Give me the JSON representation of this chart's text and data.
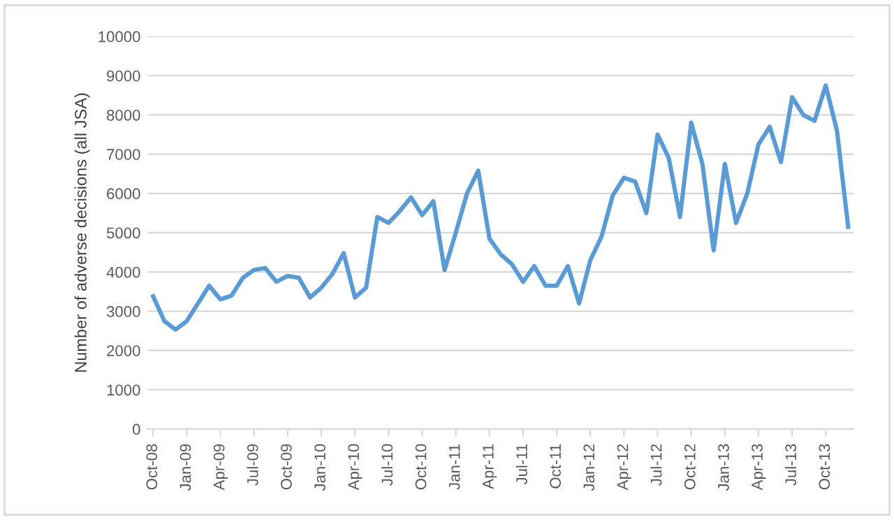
{
  "chart_data": {
    "type": "line",
    "ylabel": "Number of adverse decisions (all JSA)",
    "categories": [
      "Oct-08",
      null,
      null,
      "Jan-09",
      null,
      null,
      "Apr-09",
      null,
      null,
      "Jul-09",
      null,
      null,
      "Oct-09",
      null,
      null,
      "Jan-10",
      null,
      null,
      "Apr-10",
      null,
      null,
      "Jul-10",
      null,
      null,
      "Oct-10",
      null,
      null,
      "Jan-11",
      null,
      null,
      "Apr-11",
      null,
      null,
      "Jul-11",
      null,
      null,
      "Oct-11",
      null,
      null,
      "Jan-12",
      null,
      null,
      "Apr-12",
      null,
      null,
      "Jul-12",
      null,
      null,
      "Oct-12",
      null,
      null,
      "Jan-13",
      null,
      null,
      "Apr-13",
      null,
      null,
      "Jul-13",
      null,
      null,
      "Oct-13",
      null,
      null
    ],
    "series": [
      {
        "color": "#5b9bd5",
        "values": [
          3380,
          2750,
          2530,
          2750,
          3200,
          3650,
          3300,
          3400,
          3850,
          4050,
          4100,
          3750,
          3900,
          3850,
          3350,
          3600,
          3950,
          4480,
          3350,
          3600,
          5400,
          5250,
          5550,
          5900,
          5450,
          5800,
          4050,
          5000,
          6000,
          6580,
          4850,
          4450,
          4200,
          3750,
          4150,
          3650,
          3650,
          4150,
          3200,
          4300,
          4900,
          5950,
          6400,
          6300,
          5500,
          7500,
          6900,
          5400,
          7800,
          6750,
          4550,
          6750,
          5250,
          6000,
          7250,
          7700,
          6800,
          8450,
          8000,
          7850,
          8750,
          7600,
          5150
        ]
      }
    ],
    "ylim": [
      0,
      10000
    ],
    "yticks": [
      0,
      1000,
      2000,
      3000,
      4000,
      5000,
      6000,
      7000,
      8000,
      9000,
      10000
    ],
    "grid": "y",
    "marker": "none",
    "line_style": "solid"
  }
}
